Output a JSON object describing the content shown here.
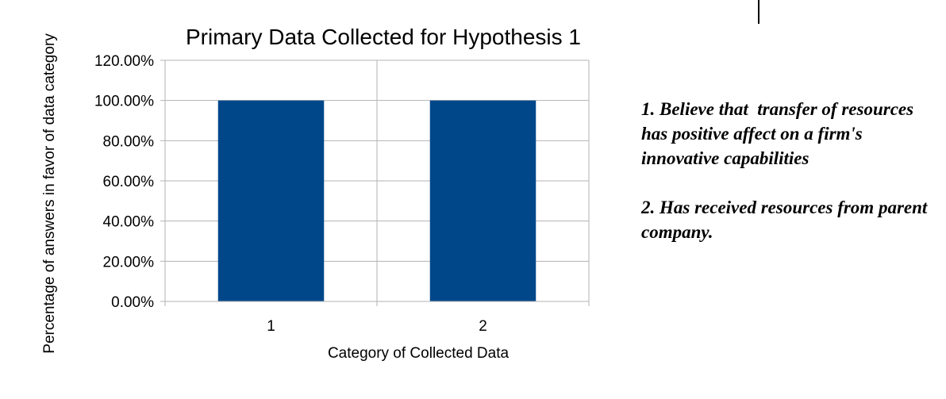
{
  "chart_data": {
    "type": "bar",
    "title": "Primary Data Collected for Hypothesis 1",
    "xlabel": "Category of Collected Data",
    "ylabel": "Percentage of answers in favor of data category",
    "categories": [
      "1",
      "2"
    ],
    "values": [
      100,
      100
    ],
    "ylim": [
      0,
      120
    ],
    "yticks": [
      "0.00%",
      "20.00%",
      "40.00%",
      "60.00%",
      "80.00%",
      "100.00%",
      "120.00%"
    ],
    "grid": true,
    "bar_color": "#00478a"
  },
  "notes": [
    "1. Believe that  transfer of resources has positive affect on a firm's innovative capabilities",
    "2. Has received resources from parent company."
  ]
}
